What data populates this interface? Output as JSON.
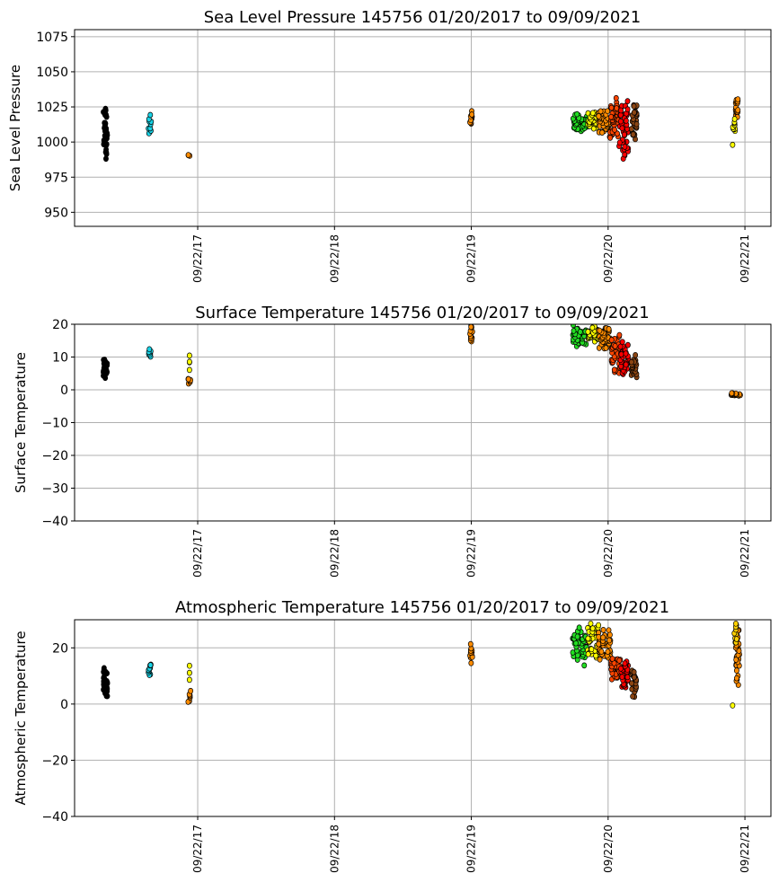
{
  "chart_data": [
    {
      "type": "scatter",
      "title": "Sea Level Pressure 145756  01/20/2017 to 09/09/2021",
      "ylabel": "Sea Level Pressure",
      "xlabel": "",
      "ylim": [
        940,
        1080
      ],
      "xlim": [
        2016.82,
        2021.91
      ],
      "yticks": [
        950,
        975,
        1000,
        1025,
        1050,
        1075
      ],
      "xticks": [
        {
          "value": 2017.72,
          "label": "09/22/17"
        },
        {
          "value": 2018.72,
          "label": "09/22/18"
        },
        {
          "value": 2019.72,
          "label": "09/22/19"
        },
        {
          "value": 2020.72,
          "label": "09/22/20"
        },
        {
          "value": 2021.72,
          "label": "09/22/21"
        }
      ],
      "grid": true,
      "clusters": [
        {
          "x": [
            2017.03,
            2017.06
          ],
          "y": [
            984,
            1029
          ],
          "color": "#000000",
          "n": 40
        },
        {
          "x": [
            2017.36,
            2017.38
          ],
          "y": [
            1002,
            1020
          ],
          "color": "#19d3e6",
          "n": 10
        },
        {
          "x": [
            2017.65,
            2017.67
          ],
          "y": [
            990,
            991
          ],
          "color": "#ff8c00",
          "n": 3
        },
        {
          "x": [
            2019.71,
            2019.73
          ],
          "y": [
            1010,
            1023
          ],
          "color": "#ff8c00",
          "n": 14
        },
        {
          "x": [
            2020.46,
            2020.57
          ],
          "y": [
            1007,
            1020
          ],
          "color": "#22dd22",
          "n": 45
        },
        {
          "x": [
            2020.57,
            2020.65
          ],
          "y": [
            1008,
            1022
          ],
          "color": "#ffff00",
          "n": 40
        },
        {
          "x": [
            2020.65,
            2020.73
          ],
          "y": [
            1005,
            1024
          ],
          "color": "#ff8c00",
          "n": 40
        },
        {
          "x": [
            2020.73,
            2020.8
          ],
          "y": [
            1000,
            1033
          ],
          "color": "#ff4500",
          "n": 45
        },
        {
          "x": [
            2020.8,
            2020.87
          ],
          "y": [
            987,
            1032
          ],
          "color": "#ff0000",
          "n": 45
        },
        {
          "x": [
            2020.89,
            2020.93
          ],
          "y": [
            1000,
            1030
          ],
          "color": "#8b4513",
          "n": 30
        },
        {
          "x": [
            2021.65,
            2021.67
          ],
          "y": [
            1015,
            1035
          ],
          "color": "#ff8c00",
          "n": 18
        },
        {
          "x": [
            2021.63,
            2021.65
          ],
          "y": [
            1005,
            1018
          ],
          "color": "#ffff00",
          "n": 10
        },
        {
          "x": [
            2021.63,
            2021.63
          ],
          "y": [
            998,
            998
          ],
          "color": "#ffff00",
          "n": 1
        }
      ]
    },
    {
      "type": "scatter",
      "title": "Surface Temperature 145756  01/20/2017 to 09/09/2021",
      "ylabel": "Surface Temperature",
      "xlabel": "",
      "ylim": [
        -40,
        20
      ],
      "xlim": [
        2016.82,
        2021.91
      ],
      "yticks": [
        -40,
        -30,
        -20,
        -10,
        0,
        10,
        20
      ],
      "xticks": [
        {
          "value": 2017.72,
          "label": "09/22/17"
        },
        {
          "value": 2018.72,
          "label": "09/22/18"
        },
        {
          "value": 2019.72,
          "label": "09/22/19"
        },
        {
          "value": 2020.72,
          "label": "09/22/20"
        },
        {
          "value": 2021.72,
          "label": "09/22/21"
        }
      ],
      "grid": true,
      "clusters": [
        {
          "x": [
            2017.03,
            2017.06
          ],
          "y": [
            3,
            10
          ],
          "color": "#000000",
          "n": 35
        },
        {
          "x": [
            2017.36,
            2017.38
          ],
          "y": [
            10,
            12.5
          ],
          "color": "#19d3e6",
          "n": 8
        },
        {
          "x": [
            2017.65,
            2017.67
          ],
          "y": [
            1.5,
            4
          ],
          "color": "#ff8c00",
          "n": 6
        },
        {
          "x": [
            2017.66,
            2017.66
          ],
          "y": [
            5,
            12.5
          ],
          "color": "#ffff00",
          "n": 4
        },
        {
          "x": [
            2019.71,
            2019.73
          ],
          "y": [
            14,
            20
          ],
          "color": "#ff8c00",
          "n": 14
        },
        {
          "x": [
            2020.46,
            2020.57
          ],
          "y": [
            13,
            20
          ],
          "color": "#22dd22",
          "n": 40
        },
        {
          "x": [
            2020.57,
            2020.65
          ],
          "y": [
            14,
            20
          ],
          "color": "#ffff00",
          "n": 35
        },
        {
          "x": [
            2020.65,
            2020.74
          ],
          "y": [
            12,
            20
          ],
          "color": "#ff8c00",
          "n": 40
        },
        {
          "x": [
            2020.74,
            2020.81
          ],
          "y": [
            5,
            17
          ],
          "color": "#ff4500",
          "n": 40
        },
        {
          "x": [
            2020.81,
            2020.87
          ],
          "y": [
            4,
            15
          ],
          "color": "#ff0000",
          "n": 35
        },
        {
          "x": [
            2020.89,
            2020.93
          ],
          "y": [
            3,
            11
          ],
          "color": "#8b4513",
          "n": 25
        },
        {
          "x": [
            2021.62,
            2021.69
          ],
          "y": [
            -1.8,
            -1
          ],
          "color": "#ff8c00",
          "n": 20
        }
      ]
    },
    {
      "type": "scatter",
      "title": "Atmospheric Temperature 145756  01/20/2017 to 09/09/2021",
      "ylabel": "Atmospheric Temperature",
      "xlabel": "",
      "ylim": [
        -40,
        30
      ],
      "xlim": [
        2016.82,
        2021.91
      ],
      "yticks": [
        -40,
        -20,
        0,
        20
      ],
      "xticks": [
        {
          "value": 2017.72,
          "label": "09/22/17"
        },
        {
          "value": 2018.72,
          "label": "09/22/18"
        },
        {
          "value": 2019.72,
          "label": "09/22/19"
        },
        {
          "value": 2020.72,
          "label": "09/22/20"
        },
        {
          "value": 2021.72,
          "label": "09/22/21"
        }
      ],
      "grid": true,
      "clusters": [
        {
          "x": [
            2017.03,
            2017.06
          ],
          "y": [
            2,
            13
          ],
          "color": "#000000",
          "n": 40
        },
        {
          "x": [
            2017.36,
            2017.38
          ],
          "y": [
            9,
            15
          ],
          "color": "#19d3e6",
          "n": 10
        },
        {
          "x": [
            2017.65,
            2017.67
          ],
          "y": [
            0,
            5
          ],
          "color": "#ff8c00",
          "n": 7
        },
        {
          "x": [
            2017.66,
            2017.66
          ],
          "y": [
            7,
            14
          ],
          "color": "#ffff00",
          "n": 3
        },
        {
          "x": [
            2019.71,
            2019.73
          ],
          "y": [
            14,
            22
          ],
          "color": "#ff8c00",
          "n": 14
        },
        {
          "x": [
            2020.46,
            2020.57
          ],
          "y": [
            13,
            28
          ],
          "color": "#22dd22",
          "n": 45
        },
        {
          "x": [
            2020.57,
            2020.65
          ],
          "y": [
            15,
            30
          ],
          "color": "#ffff00",
          "n": 40
        },
        {
          "x": [
            2020.65,
            2020.74
          ],
          "y": [
            14,
            28
          ],
          "color": "#ff8c00",
          "n": 40
        },
        {
          "x": [
            2020.74,
            2020.81
          ],
          "y": [
            7,
            18
          ],
          "color": "#ff4500",
          "n": 40
        },
        {
          "x": [
            2020.81,
            2020.87
          ],
          "y": [
            5,
            16
          ],
          "color": "#ff0000",
          "n": 35
        },
        {
          "x": [
            2020.89,
            2020.93
          ],
          "y": [
            2,
            13
          ],
          "color": "#8b4513",
          "n": 30
        },
        {
          "x": [
            2021.65,
            2021.68
          ],
          "y": [
            5,
            30
          ],
          "color": "#ff8c00",
          "n": 30
        },
        {
          "x": [
            2021.64,
            2021.66
          ],
          "y": [
            20,
            30
          ],
          "color": "#ffd000",
          "n": 10
        },
        {
          "x": [
            2021.63,
            2021.63
          ],
          "y": [
            -0.5,
            -0.5
          ],
          "color": "#ffff00",
          "n": 1
        }
      ]
    }
  ]
}
